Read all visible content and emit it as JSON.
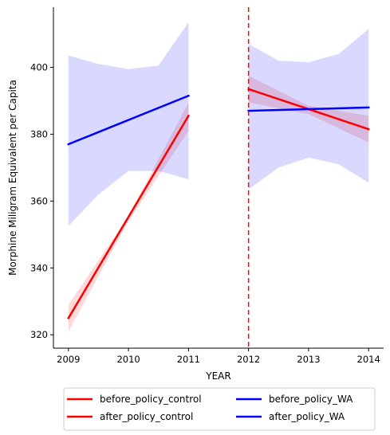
{
  "chart_data": {
    "type": "line",
    "title": "",
    "xlabel": "YEAR",
    "ylabel": "Morphine Miligram Equivalent per Capita",
    "xlim": [
      2008.75,
      2014.25
    ],
    "ylim": [
      316,
      418
    ],
    "xticks": [
      2009,
      2010,
      2011,
      2012,
      2013,
      2014
    ],
    "yticks": [
      320,
      340,
      360,
      380,
      400
    ],
    "policy_year": 2012,
    "policy_line_color": "#ff0000",
    "legend_position": "bottom-center",
    "grid": false,
    "series": [
      {
        "name": "before_policy_control",
        "color": "#ff0000",
        "band_color": "#ff0000",
        "x": [
          2009,
          2011
        ],
        "values": [
          325,
          385.5
        ],
        "band_x": [
          2009,
          2010,
          2011
        ],
        "band_upper": [
          329,
          355.5,
          389.5
        ],
        "band_lower": [
          321,
          354,
          381
        ]
      },
      {
        "name": "after_policy_control",
        "color": "#ff0000",
        "band_color": "#ff0000",
        "x": [
          2012,
          2014
        ],
        "values": [
          393.5,
          381.5
        ],
        "band_x": [
          2012,
          2013,
          2014
        ],
        "band_upper": [
          397.5,
          388.5,
          385.5
        ],
        "band_lower": [
          389.5,
          386,
          377.5
        ]
      },
      {
        "name": "before_policy_WA",
        "color": "#0000ff",
        "band_color": "#0000ff",
        "x": [
          2009,
          2011
        ],
        "values": [
          377,
          391.5
        ],
        "band_x": [
          2009,
          2009.5,
          2010,
          2010.5,
          2011
        ],
        "band_upper": [
          403.5,
          401,
          399.5,
          400.5,
          413.5
        ],
        "band_lower": [
          352.5,
          362,
          369,
          369,
          366.5
        ]
      },
      {
        "name": "after_policy_WA",
        "color": "#0000ff",
        "band_color": "#0000ff",
        "x": [
          2012,
          2014
        ],
        "values": [
          387,
          388
        ],
        "band_x": [
          2012,
          2012.5,
          2013,
          2013.5,
          2014
        ],
        "band_upper": [
          407,
          402,
          401.5,
          404,
          411.5
        ],
        "band_lower": [
          363.5,
          370,
          373,
          371,
          365.5
        ]
      }
    ]
  }
}
